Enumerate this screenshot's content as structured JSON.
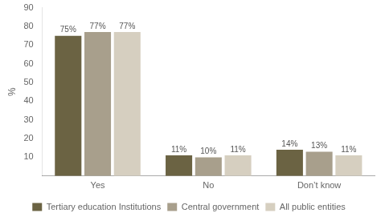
{
  "chart_data": {
    "type": "bar",
    "ylabel": "%",
    "categories": [
      "Yes",
      "No",
      "Don’t know"
    ],
    "series": [
      {
        "name": "Tertiary education Institutions",
        "color": "#6b6343",
        "values": [
          75,
          11,
          14
        ],
        "value_labels": [
          "75%",
          "11%",
          "14%"
        ]
      },
      {
        "name": "Central government",
        "color": "#a89f8c",
        "values": [
          77,
          10,
          13
        ],
        "value_labels": [
          "77%",
          "10%",
          "13%"
        ]
      },
      {
        "name": "All public entities",
        "color": "#d6cfc0",
        "values": [
          77,
          11,
          11
        ],
        "value_labels": [
          "77%",
          "11%",
          "11%"
        ]
      }
    ],
    "ylim": [
      0,
      90
    ],
    "yticks": [
      10,
      20,
      30,
      40,
      50,
      60,
      70,
      80,
      90
    ],
    "grid": false,
    "legend": "bottom",
    "data_labels": true
  }
}
